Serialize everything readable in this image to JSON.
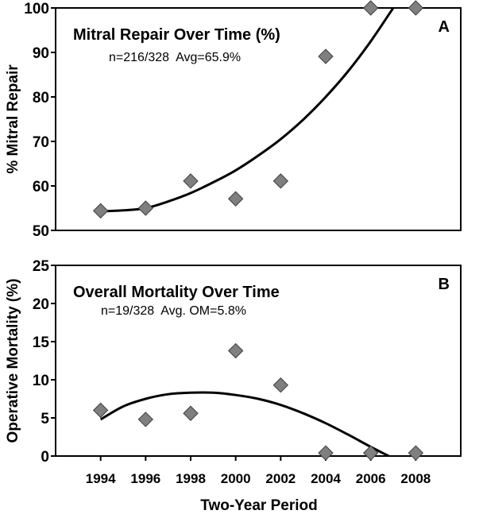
{
  "figure": {
    "xlabel": "Two-Year Period"
  },
  "chart_data": [
    {
      "type": "scatter",
      "panel": "A",
      "title": "Mitral Repair Over Time (%)",
      "subtitle": "n=216/328  Avg=65.9%",
      "ylabel": "% Mitral Repair",
      "xlabel": "",
      "ylim": [
        50,
        100
      ],
      "yticks": [
        50,
        60,
        70,
        80,
        90,
        100
      ],
      "xlim": [
        1992,
        2010
      ],
      "xticks": [
        1994,
        1996,
        1998,
        2000,
        2002,
        2004,
        2006,
        2008
      ],
      "grid": false,
      "series": [
        {
          "x": [
            1994,
            1996,
            1998,
            2000,
            2002,
            2004,
            2006,
            2008
          ],
          "y": [
            54.4,
            55,
            61.1,
            57.1,
            61.1,
            89.1,
            100,
            100
          ]
        }
      ],
      "trend": [
        [
          1994,
          54.3
        ],
        [
          1995,
          54.5
        ],
        [
          1996,
          55
        ],
        [
          1997,
          56.5
        ],
        [
          1998,
          58.4
        ],
        [
          1999,
          60.8
        ],
        [
          2000,
          63.5
        ],
        [
          2001,
          66.8
        ],
        [
          2002,
          70.5
        ],
        [
          2003,
          74.9
        ],
        [
          2004,
          80
        ],
        [
          2005,
          85.8
        ],
        [
          2006,
          92.5
        ],
        [
          2007,
          100
        ]
      ]
    },
    {
      "type": "scatter",
      "panel": "B",
      "title": "Overall Mortality Over Time",
      "subtitle": "n=19/328  Avg. OM=5.8%",
      "ylabel": "Operative Mortality (%)",
      "xlabel": "Two-Year Period",
      "ylim": [
        0,
        25
      ],
      "yticks": [
        0,
        5,
        10,
        15,
        20,
        25
      ],
      "xlim": [
        1992,
        2010
      ],
      "xticks": [
        1994,
        1996,
        1998,
        2000,
        2002,
        2004,
        2006,
        2008
      ],
      "grid": false,
      "series": [
        {
          "x": [
            1994,
            1996,
            1998,
            2000,
            2002,
            2004,
            2006,
            2008
          ],
          "y": [
            6,
            4.8,
            5.6,
            13.8,
            9.3,
            0.4,
            0.4,
            0.4
          ]
        }
      ],
      "trend": [
        [
          1994,
          4.8
        ],
        [
          1995,
          6.5
        ],
        [
          1996,
          7.5
        ],
        [
          1997,
          8.1
        ],
        [
          1998,
          8.3
        ],
        [
          1999,
          8.3
        ],
        [
          2000,
          8
        ],
        [
          2001,
          7.5
        ],
        [
          2002,
          6.7
        ],
        [
          2003,
          5.6
        ],
        [
          2004,
          4.3
        ],
        [
          2005,
          2.8
        ],
        [
          2006,
          1.2
        ],
        [
          2006.8,
          0
        ]
      ]
    }
  ]
}
